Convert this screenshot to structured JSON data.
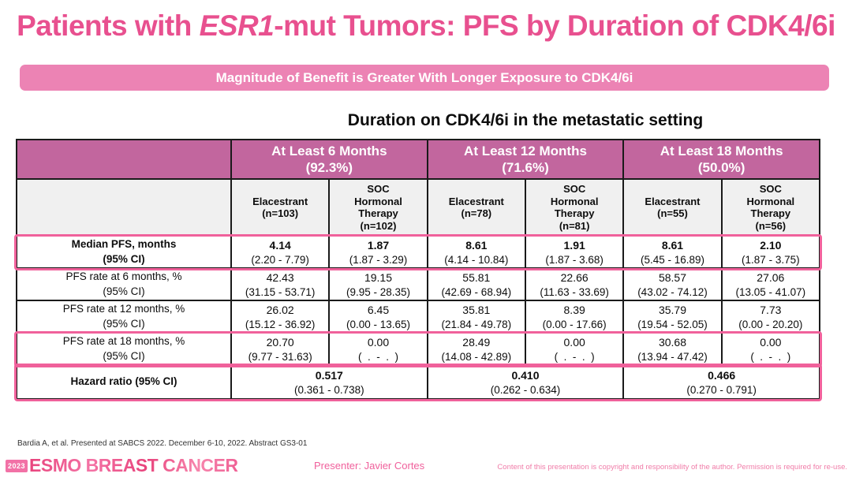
{
  "colors": {
    "title_pink": "#e8508f",
    "banner_pink": "#ec83b4",
    "header_mauve": "#c2669e",
    "highlight_pink": "#f0619b",
    "row_grey": "#f0f0f0",
    "border_dark": "#1a1a1a",
    "footer_pink": "#f0609c",
    "copyright_pink": "#f07ca8",
    "citation_grey": "#333333"
  },
  "title": {
    "part1": "Patients with ",
    "italic": "ESR1",
    "part2": "-mut Tumors: PFS by Duration of CDK4/6i"
  },
  "banner": {
    "text": "Magnitude of Benefit is Greater With Longer Exposure to CDK4/6i"
  },
  "table": {
    "caption": "Duration on CDK4/6i in the metastatic setting",
    "groups": [
      "At Least 6 Months\n(92.3%)",
      "At Least 12 Months\n(71.6%)",
      "At Least 18 Months\n(50.0%)"
    ],
    "arms": [
      "Elacestrant\n(n=103)",
      "SOC\nHormonal\nTherapy\n(n=102)",
      "Elacestrant\n(n=78)",
      "SOC\nHormonal\nTherapy\n(n=81)",
      "Elacestrant\n(n=55)",
      "SOC\nHormonal\nTherapy\n(n=56)"
    ],
    "rows": [
      {
        "label": "Median PFS, months\n(95% CI)",
        "cells": [
          {
            "v": "4.14",
            "ci": "(2.20 - 7.79)"
          },
          {
            "v": "1.87",
            "ci": "(1.87 - 3.29)"
          },
          {
            "v": "8.61",
            "ci": "(4.14 - 10.84)"
          },
          {
            "v": "1.91",
            "ci": "(1.87 - 3.68)"
          },
          {
            "v": "8.61",
            "ci": "(5.45 - 16.89)"
          },
          {
            "v": "2.10",
            "ci": "(1.87 - 3.75)"
          }
        ]
      },
      {
        "label": "PFS rate at 6 months, %\n(95% CI)",
        "cells": [
          {
            "v": "42.43",
            "ci": "(31.15 - 53.71)"
          },
          {
            "v": "19.15",
            "ci": "(9.95 - 28.35)"
          },
          {
            "v": "55.81",
            "ci": "(42.69 - 68.94)"
          },
          {
            "v": "22.66",
            "ci": "(11.63 - 33.69)"
          },
          {
            "v": "58.57",
            "ci": "(43.02 - 74.12)"
          },
          {
            "v": "27.06",
            "ci": "(13.05 - 41.07)"
          }
        ]
      },
      {
        "label": "PFS rate at 12 months, %\n(95% CI)",
        "cells": [
          {
            "v": "26.02",
            "ci": "(15.12 - 36.92)"
          },
          {
            "v": "6.45",
            "ci": "(0.00 - 13.65)"
          },
          {
            "v": "35.81",
            "ci": "(21.84 - 49.78)"
          },
          {
            "v": "8.39",
            "ci": "(0.00 - 17.66)"
          },
          {
            "v": "35.79",
            "ci": "(19.54 - 52.05)"
          },
          {
            "v": "7.73",
            "ci": "(0.00 - 20.20)"
          }
        ]
      },
      {
        "label": "PFS rate at 18 months, %\n(95% CI)",
        "cells": [
          {
            "v": "20.70",
            "ci": "(9.77 - 31.63)"
          },
          {
            "v": "0.00",
            "ci": "(  .  -  .  )"
          },
          {
            "v": "28.49",
            "ci": "(14.08 - 42.89)"
          },
          {
            "v": "0.00",
            "ci": "(  .  -  .  )"
          },
          {
            "v": "30.68",
            "ci": "(13.94 - 47.42)"
          },
          {
            "v": "0.00",
            "ci": "(  .  -  .  )"
          }
        ]
      }
    ],
    "hazard": {
      "label": "Hazard ratio (95% CI)",
      "cells": [
        {
          "v": "0.517",
          "ci": "(0.361 - 0.738)"
        },
        {
          "v": "0.410",
          "ci": "(0.262 - 0.634)"
        },
        {
          "v": "0.466",
          "ci": "(0.270 - 0.791)"
        }
      ]
    }
  },
  "footer": {
    "citation": "Bardia A, et al. Presented at SABCS 2022. December 6-10, 2022. Abstract GS3-01",
    "logo_year": "2023",
    "logo_text": "ESMO BREAST CANCER",
    "presenter": "Presenter: Javier Cortes",
    "copyright": "Content of this presentation is copyright and responsibility of the author. Permission is required for re-use."
  }
}
